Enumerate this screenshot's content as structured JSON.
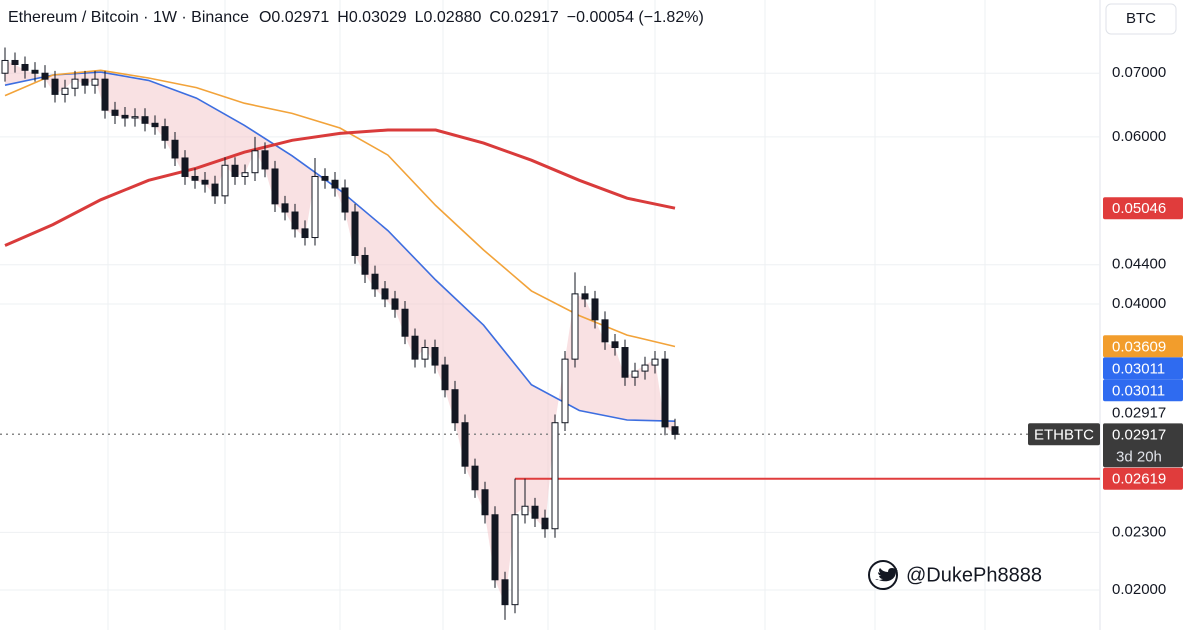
{
  "chart_data": {
    "type": "candlestick",
    "header": {
      "symbol": "Ethereum / Bitcoin · 1W · Binance",
      "ohlc": [
        "O0.02971",
        "H0.03029",
        "L0.02880",
        "C0.02917"
      ],
      "change": "−0.00054 (−1.82%)"
    },
    "unit": "BTC",
    "watermark": "@DukePh8888",
    "log_scale": true,
    "ylim": [
      0.01815,
      0.0836
    ],
    "yticks": [
      {
        "value": 0.07,
        "label": "0.07000"
      },
      {
        "value": 0.06,
        "label": "0.06000"
      },
      {
        "value": 0.044,
        "label": "0.04400"
      },
      {
        "value": 0.04,
        "label": "0.04000"
      },
      {
        "value": 0.023,
        "label": "0.02300"
      },
      {
        "value": 0.02,
        "label": "0.02000"
      }
    ],
    "categories": [
      null,
      null,
      null,
      null,
      null,
      null,
      null,
      null,
      null,
      null,
      null,
      null,
      null,
      null,
      null,
      null,
      null,
      null,
      null,
      null,
      null,
      null,
      null,
      null,
      null,
      null,
      null,
      null,
      null,
      null,
      null,
      null,
      null,
      null,
      null,
      null,
      null,
      null,
      null,
      null,
      null,
      null,
      null,
      null,
      null,
      null,
      null,
      null,
      null,
      null,
      null,
      null,
      null,
      null,
      null,
      null,
      null,
      null,
      null,
      null,
      null,
      null,
      null,
      null,
      null,
      null,
      null,
      null
    ],
    "open": [
      0.07,
      0.0722,
      0.0715,
      0.0705,
      0.07,
      0.069,
      0.0665,
      0.0675,
      0.069,
      0.068,
      0.069,
      0.064,
      0.0632,
      0.0628,
      0.063,
      0.062,
      0.0615,
      0.0595,
      0.057,
      0.0545,
      0.054,
      0.0535,
      0.052,
      0.056,
      0.0545,
      0.055,
      0.058,
      0.0555,
      0.051,
      0.05,
      0.048,
      0.047,
      0.0545,
      0.054,
      0.053,
      0.05,
      0.045,
      0.043,
      0.0415,
      0.0405,
      0.0395,
      0.037,
      0.035,
      0.036,
      0.0345,
      0.0325,
      0.03,
      0.027,
      0.0255,
      0.024,
      0.0205,
      0.0193,
      0.024,
      0.0245,
      0.0238,
      0.0232,
      0.03,
      0.035,
      0.041,
      0.0405,
      0.0385,
      0.0365,
      0.036,
      0.0335,
      0.034,
      0.0345,
      0.035,
      0.02971
    ],
    "high": [
      0.0745,
      0.0736,
      0.0729,
      0.0719,
      0.0714,
      0.0704,
      0.0689,
      0.0704,
      0.0704,
      0.0704,
      0.0704,
      0.0653,
      0.0645,
      0.0643,
      0.0643,
      0.0632,
      0.0627,
      0.0607,
      0.0581,
      0.0556,
      0.0551,
      0.0546,
      0.0571,
      0.0571,
      0.0561,
      0.06,
      0.0592,
      0.0566,
      0.052,
      0.051,
      0.049,
      0.057,
      0.0556,
      0.0551,
      0.0541,
      0.051,
      0.0459,
      0.0439,
      0.0423,
      0.0413,
      0.0403,
      0.0377,
      0.0367,
      0.0367,
      0.0352,
      0.0332,
      0.0306,
      0.0275,
      0.026,
      0.0245,
      0.0209,
      0.0262,
      0.0262,
      0.025,
      0.0243,
      0.0306,
      0.0357,
      0.0432,
      0.0418,
      0.0413,
      0.0393,
      0.0372,
      0.0367,
      0.0347,
      0.0352,
      0.0357,
      0.0357,
      0.03029
    ],
    "low": [
      0.0686,
      0.0701,
      0.0691,
      0.0686,
      0.0676,
      0.0652,
      0.0652,
      0.0662,
      0.0666,
      0.0666,
      0.0627,
      0.0619,
      0.0615,
      0.0615,
      0.0608,
      0.0603,
      0.0583,
      0.0559,
      0.0534,
      0.0529,
      0.0524,
      0.051,
      0.051,
      0.0534,
      0.0534,
      0.0539,
      0.0544,
      0.05,
      0.049,
      0.047,
      0.0461,
      0.0461,
      0.0529,
      0.0519,
      0.049,
      0.0441,
      0.0421,
      0.0407,
      0.0397,
      0.0387,
      0.0363,
      0.0343,
      0.0343,
      0.0338,
      0.0319,
      0.0294,
      0.0265,
      0.025,
      0.0235,
      0.0201,
      0.0186,
      0.0189,
      0.0235,
      0.0233,
      0.0227,
      0.0227,
      0.0294,
      0.0343,
      0.0397,
      0.0377,
      0.0358,
      0.0353,
      0.0328,
      0.0328,
      0.0333,
      0.0338,
      0.0291,
      0.0288
    ],
    "close": [
      0.0722,
      0.0715,
      0.0705,
      0.07,
      0.069,
      0.0665,
      0.0675,
      0.069,
      0.068,
      0.069,
      0.064,
      0.0632,
      0.0628,
      0.063,
      0.062,
      0.0615,
      0.0595,
      0.057,
      0.0545,
      0.054,
      0.0535,
      0.052,
      0.056,
      0.0545,
      0.055,
      0.058,
      0.0555,
      0.051,
      0.05,
      0.048,
      0.047,
      0.0545,
      0.054,
      0.053,
      0.05,
      0.045,
      0.043,
      0.0415,
      0.0405,
      0.0395,
      0.037,
      0.035,
      0.036,
      0.0345,
      0.0325,
      0.03,
      0.027,
      0.0255,
      0.024,
      0.0205,
      0.0193,
      0.024,
      0.0245,
      0.0238,
      0.0232,
      0.03,
      0.035,
      0.041,
      0.0405,
      0.0385,
      0.0365,
      0.036,
      0.0335,
      0.034,
      0.0345,
      0.035,
      0.0297,
      0.02917
    ],
    "candle_colors": {
      "up": "#ffffff",
      "down": "#131722",
      "outline": "#131722"
    },
    "moving_averages": [
      {
        "color": "#3d6ee0",
        "values": [
          0.068,
          0.0697,
          0.0702,
          0.0688,
          0.0659,
          0.0617,
          0.0573,
          0.0527,
          0.0478,
          0.0424,
          0.038,
          0.0329,
          0.0309,
          0.0302,
          0.03011
        ]
      },
      {
        "color": "#f2a33a",
        "values": [
          0.0663,
          0.0697,
          0.0705,
          0.0692,
          0.0676,
          0.0651,
          0.0635,
          0.0613,
          0.0574,
          0.0508,
          0.0456,
          0.0413,
          0.0389,
          0.0371,
          0.03609
        ]
      },
      {
        "color": "#d93b3b",
        "values": [
          0.0461,
          0.0485,
          0.0515,
          0.054,
          0.0556,
          0.0578,
          0.0595,
          0.0605,
          0.061,
          0.061,
          0.0591,
          0.0567,
          0.054,
          0.0517,
          0.05046
        ]
      }
    ],
    "fill_color": "#f4c9cc",
    "horizontal_line": {
      "value": 0.02619,
      "color": "#e03c3c"
    },
    "price_labels": [
      {
        "value": 0.05046,
        "color": "#e03c3c"
      },
      {
        "value": 0.03609,
        "color": "#f29d2c"
      },
      {
        "value": 0.03011,
        "color": "#2f6bf0"
      },
      {
        "value": 0.03011,
        "color": "#2f6bf0"
      },
      {
        "value": 0.02917,
        "color": "#3b3b3b",
        "ticker": "ETHBTC",
        "countdown": "3d 20h"
      },
      {
        "value": 0.02917,
        "color": "#ffffff"
      },
      {
        "value": 0.02619,
        "color": "#e03c3c"
      }
    ]
  }
}
